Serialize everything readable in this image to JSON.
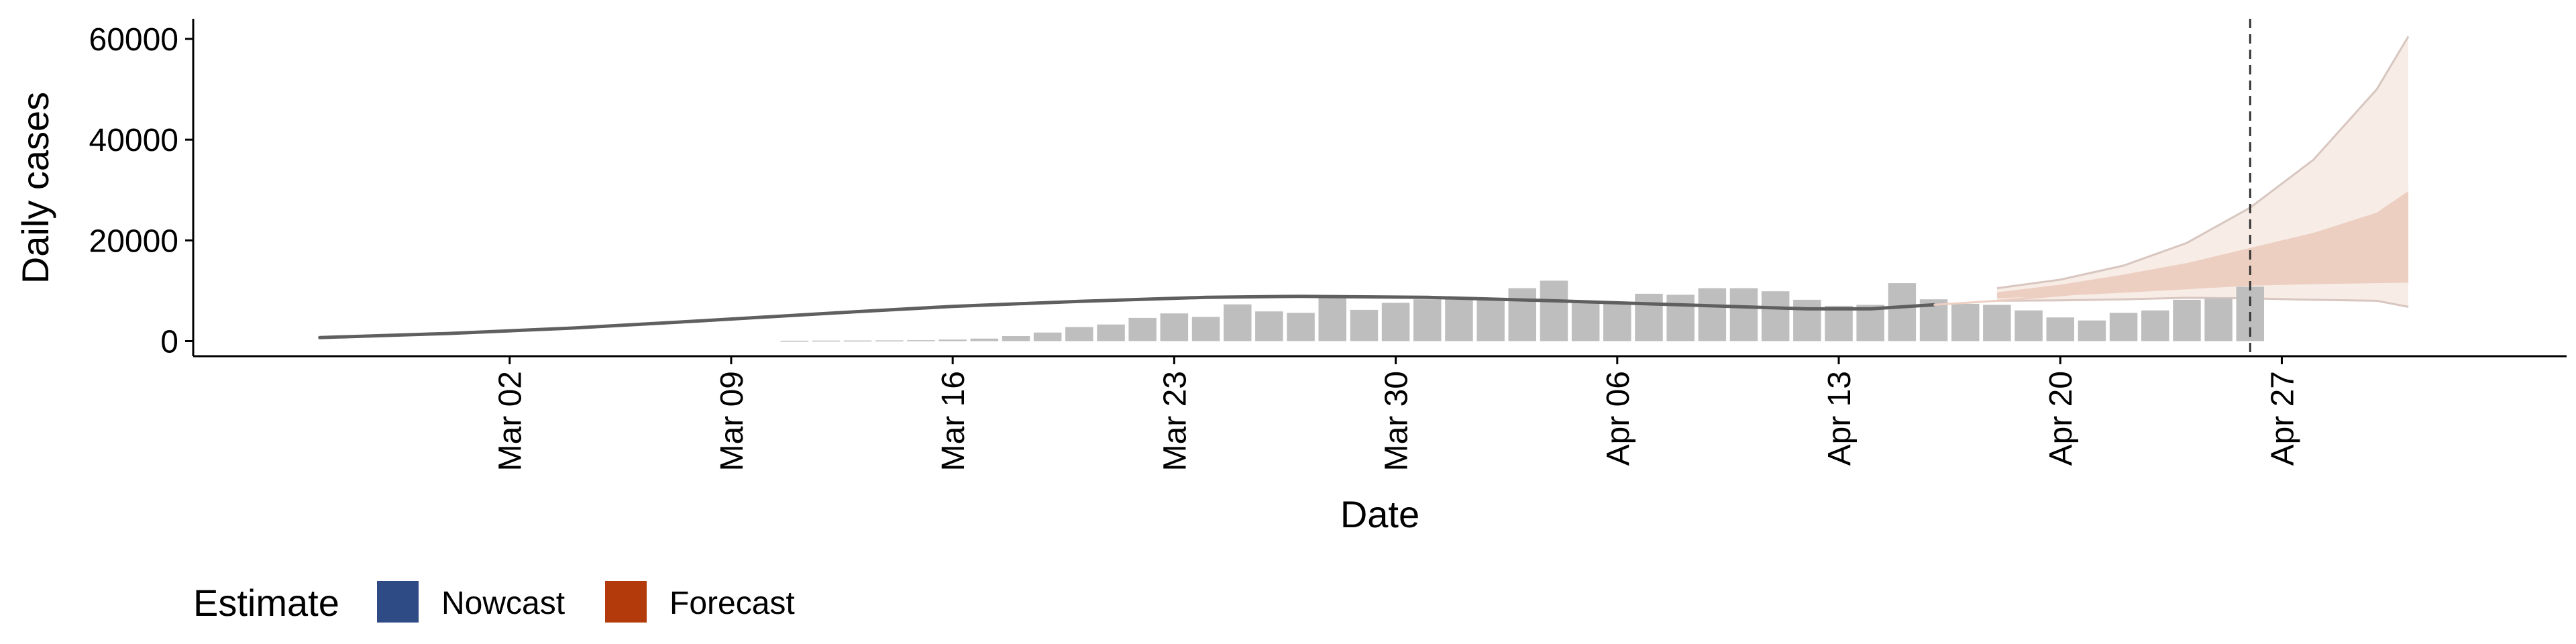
{
  "chart_data": {
    "type": "bar",
    "xlabel": "Date",
    "ylabel": "Daily cases",
    "ylim": [
      -3000,
      64000
    ],
    "y_ticks": [
      0,
      20000,
      40000,
      60000
    ],
    "y_tick_labels": [
      "0",
      "20000",
      "40000",
      "60000"
    ],
    "x_ticks": [
      "2020-03-02",
      "2020-03-09",
      "2020-03-16",
      "2020-03-23",
      "2020-03-30",
      "2020-04-06",
      "2020-04-13",
      "2020-04-20",
      "2020-04-27"
    ],
    "x_tick_labels": [
      "Mar 02",
      "Mar 09",
      "Mar 16",
      "Mar 23",
      "Mar 30",
      "Apr 06",
      "Apr 13",
      "Apr 20",
      "Apr 27"
    ],
    "xlim": [
      "2020-02-21",
      "2020-05-06"
    ],
    "grid": false,
    "legend_position": "bottom-left",
    "legend": {
      "title": "Estimate",
      "items": [
        {
          "label": "Nowcast",
          "color": "#2F4B85"
        },
        {
          "label": "Forecast",
          "color": "#B33A0A"
        }
      ]
    },
    "colors": {
      "bars": "#BEBEBE",
      "median_line": "#5F5F5F",
      "band_inner": "#EDCFC2",
      "band_outer": "#F7ECE6",
      "band_edge": "#D8C6C0",
      "vline": "#333333"
    },
    "reported_cases": {
      "dates": [
        "2020-03-11",
        "2020-03-12",
        "2020-03-13",
        "2020-03-14",
        "2020-03-15",
        "2020-03-16",
        "2020-03-17",
        "2020-03-18",
        "2020-03-19",
        "2020-03-20",
        "2020-03-21",
        "2020-03-22",
        "2020-03-23",
        "2020-03-24",
        "2020-03-25",
        "2020-03-26",
        "2020-03-27",
        "2020-03-28",
        "2020-03-29",
        "2020-03-30",
        "2020-03-31",
        "2020-04-01",
        "2020-04-02",
        "2020-04-03",
        "2020-04-04",
        "2020-04-05",
        "2020-04-06",
        "2020-04-07",
        "2020-04-08",
        "2020-04-09",
        "2020-04-10",
        "2020-04-11",
        "2020-04-12",
        "2020-04-13",
        "2020-04-14",
        "2020-04-15",
        "2020-04-16",
        "2020-04-17",
        "2020-04-18",
        "2020-04-19",
        "2020-04-20",
        "2020-04-21",
        "2020-04-22",
        "2020-04-23",
        "2020-04-24",
        "2020-04-25",
        "2020-04-26"
      ],
      "values": [
        80,
        100,
        120,
        140,
        180,
        300,
        500,
        1000,
        1700,
        2800,
        3300,
        4600,
        5500,
        4800,
        7300,
        5900,
        5600,
        8800,
        6200,
        7600,
        8300,
        8700,
        8500,
        10500,
        12000,
        8000,
        7500,
        9400,
        9200,
        10500,
        10500,
        9900,
        8200,
        7000,
        7200,
        11500,
        8300,
        7400,
        7200,
        6100,
        4700,
        4100,
        5600,
        6100,
        8200,
        8500,
        10800
      ]
    },
    "estimate_median": {
      "dates": [
        "2020-02-25",
        "2020-02-29",
        "2020-03-04",
        "2020-03-08",
        "2020-03-12",
        "2020-03-16",
        "2020-03-20",
        "2020-03-24",
        "2020-03-27",
        "2020-03-31",
        "2020-04-04",
        "2020-04-08",
        "2020-04-12",
        "2020-04-14",
        "2020-04-16"
      ],
      "values": [
        700,
        1500,
        2600,
        4000,
        5500,
        6900,
        7900,
        8700,
        8900,
        8700,
        8000,
        7200,
        6400,
        6400,
        7200
      ]
    },
    "forecast_median": {
      "dates": [
        "2020-04-16",
        "2020-04-18",
        "2020-04-20",
        "2020-04-22",
        "2020-04-24",
        "2020-04-26",
        "2020-04-28",
        "2020-04-30",
        "2020-05-01"
      ],
      "values": [
        7200,
        8000,
        9100,
        10300,
        11700,
        13300,
        14900,
        16600,
        17500
      ]
    },
    "forecast_band_inner": {
      "dates": [
        "2020-04-18",
        "2020-04-20",
        "2020-04-22",
        "2020-04-24",
        "2020-04-26",
        "2020-04-28",
        "2020-04-30",
        "2020-05-01"
      ],
      "lower": [
        8500,
        9000,
        9600,
        10300,
        11000,
        11300,
        11500,
        11600
      ],
      "upper": [
        9700,
        11200,
        13200,
        15500,
        18500,
        21500,
        25500,
        29800
      ]
    },
    "forecast_band_outer": {
      "dates": [
        "2020-04-18",
        "2020-04-20",
        "2020-04-22",
        "2020-04-24",
        "2020-04-26",
        "2020-04-28",
        "2020-04-30",
        "2020-05-01"
      ],
      "lower": [
        8000,
        8100,
        8300,
        8600,
        8500,
        8200,
        8000,
        6800
      ],
      "upper": [
        10500,
        12200,
        15000,
        19500,
        26500,
        36000,
        50000,
        60500
      ]
    },
    "forecast_start_date": "2020-04-26"
  }
}
